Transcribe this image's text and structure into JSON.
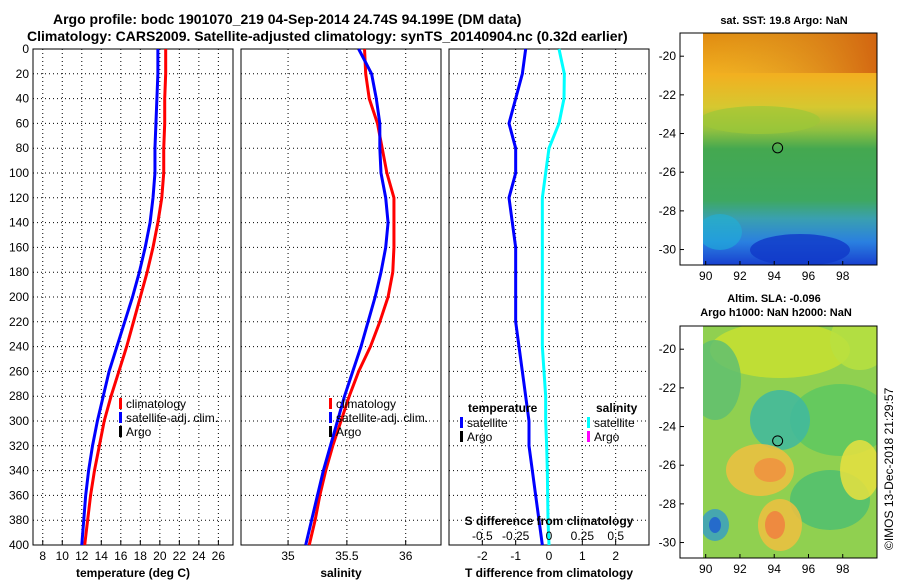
{
  "title": {
    "line1": "Argo profile: bodc 1901070_219 04-Sep-2014 24.74S 94.199E (DM data)",
    "line2": "Climatology: CARS2009. Satellite-adjusted climatology: synTS_20140904.nc (0.32d earlier)"
  },
  "colors": {
    "climatology": "#ff0000",
    "satellite": "#0000ff",
    "argo": "#000000",
    "salinity_satellite": "#00ffff",
    "salinity_argo": "#ff00ff"
  },
  "watermark": "©IMOS 13-Dec-2018 21:29:57",
  "chart_data": [
    {
      "id": "temperature",
      "type": "line",
      "xlabel": "temperature (deg C)",
      "xlim": [
        7,
        27.5
      ],
      "xticks": [
        8,
        10,
        12,
        14,
        16,
        18,
        20,
        22,
        24,
        26
      ],
      "xtick_labels": [
        "8",
        "10",
        "12",
        "14",
        "16",
        "18",
        "20",
        "22",
        "24",
        "26"
      ],
      "ylim": [
        0,
        400
      ],
      "yticks": [
        0,
        20,
        40,
        60,
        80,
        100,
        120,
        140,
        160,
        180,
        200,
        220,
        240,
        260,
        280,
        300,
        320,
        340,
        360,
        380,
        400
      ],
      "depth": [
        0,
        20,
        40,
        60,
        80,
        100,
        120,
        140,
        160,
        180,
        200,
        220,
        240,
        260,
        280,
        300,
        320,
        340,
        360,
        380,
        400
      ],
      "series": [
        {
          "name": "climatology",
          "color_key": "climatology",
          "values": [
            20.6,
            20.6,
            20.5,
            20.5,
            20.4,
            20.4,
            20.2,
            19.8,
            19.3,
            18.7,
            18.0,
            17.3,
            16.6,
            15.8,
            15.0,
            14.3,
            13.8,
            13.3,
            12.9,
            12.6,
            12.3
          ]
        },
        {
          "name": "satellite-adj. clim.",
          "color_key": "satellite",
          "values": [
            19.8,
            19.8,
            19.7,
            19.6,
            19.5,
            19.5,
            19.3,
            19.0,
            18.5,
            17.9,
            17.2,
            16.4,
            15.6,
            14.8,
            14.2,
            13.6,
            13.1,
            12.7,
            12.4,
            12.2,
            12.0
          ]
        }
      ],
      "legend": [
        "climatology",
        "satellite-adj. clim.",
        "Argo"
      ]
    },
    {
      "id": "salinity",
      "type": "line",
      "xlabel": "salinity",
      "xlim": [
        34.6,
        36.3
      ],
      "xticks": [
        35,
        35.5,
        36
      ],
      "xtick_labels": [
        "35",
        "35.5",
        "36"
      ],
      "ylim": [
        0,
        400
      ],
      "depth": [
        0,
        20,
        40,
        60,
        80,
        100,
        120,
        140,
        160,
        180,
        200,
        220,
        240,
        260,
        280,
        300,
        320,
        340,
        360,
        380,
        400
      ],
      "series": [
        {
          "name": "climatology",
          "color_key": "climatology",
          "values": [
            35.65,
            35.66,
            35.69,
            35.76,
            35.8,
            35.84,
            35.9,
            35.9,
            35.9,
            35.89,
            35.85,
            35.78,
            35.7,
            35.6,
            35.52,
            35.45,
            35.38,
            35.32,
            35.27,
            35.23,
            35.18
          ]
        },
        {
          "name": "satellite-adj. clim.",
          "color_key": "satellite",
          "values": [
            35.6,
            35.71,
            35.75,
            35.78,
            35.78,
            35.79,
            35.83,
            35.85,
            35.83,
            35.79,
            35.74,
            35.68,
            35.62,
            35.55,
            35.48,
            35.42,
            35.36,
            35.3,
            35.25,
            35.2,
            35.15
          ]
        }
      ],
      "legend": [
        "climatology",
        "satellite-adj. clim.",
        "Argo"
      ]
    },
    {
      "id": "difference",
      "type": "line",
      "xlabel": "T difference from climatology",
      "xlim": [
        -3.0,
        3.0
      ],
      "xticks": [
        -2,
        -1,
        0,
        1,
        2
      ],
      "xtick_labels": [
        "-2",
        "-1",
        "0",
        "1",
        "2"
      ],
      "secondary_xlabel": "S difference from climatology",
      "secondary_xticks": [
        -0.5,
        -0.25,
        0,
        0.25,
        0.5
      ],
      "secondary_xtick_labels": [
        "-0.5",
        "-0.25",
        "0",
        "0.25",
        "0.5"
      ],
      "secondary_scale": 4,
      "ylim": [
        0,
        400
      ],
      "depth": [
        0,
        20,
        40,
        60,
        80,
        100,
        120,
        140,
        160,
        180,
        200,
        220,
        240,
        260,
        280,
        300,
        320,
        340,
        360,
        380,
        400
      ],
      "series": [
        {
          "name": "temperature satellite",
          "color_key": "satellite",
          "values": [
            -0.7,
            -0.8,
            -1.0,
            -1.2,
            -1.0,
            -1.0,
            -1.2,
            -1.1,
            -1.0,
            -1.0,
            -1.0,
            -1.0,
            -0.9,
            -0.8,
            -0.7,
            -0.6,
            -0.6,
            -0.5,
            -0.4,
            -0.3,
            -0.2
          ]
        },
        {
          "name": "salinity satellite",
          "color_key": "salinity_satellite",
          "values": [
            0.3,
            0.46,
            0.45,
            0.3,
            0.0,
            -0.1,
            -0.2,
            -0.2,
            -0.2,
            -0.2,
            -0.2,
            -0.2,
            -0.2,
            -0.15,
            -0.1,
            -0.1,
            -0.07,
            -0.05,
            -0.04,
            -0.03,
            0.0
          ]
        }
      ],
      "legend_groups": [
        {
          "heading": "temperature",
          "items": [
            "satellite",
            "Argo"
          ]
        },
        {
          "heading": "salinity",
          "items": [
            "satellite",
            "Argo"
          ]
        }
      ]
    },
    {
      "id": "sst_map",
      "type": "heatmap",
      "title": "sat. SST: 19.8 Argo: NaN",
      "xticks": [
        90,
        92,
        94,
        96,
        98
      ],
      "xtick_labels": [
        "90",
        "92",
        "94",
        "96",
        "98"
      ],
      "yticks": [
        -20,
        -22,
        -24,
        -26,
        -28,
        -30
      ],
      "ytick_labels": [
        "-20",
        "-22",
        "-24",
        "-26",
        "-28",
        "-30"
      ],
      "xlim": [
        88.5,
        100
      ],
      "ylim": [
        -30.8,
        -18.8
      ],
      "float_position": [
        94.199,
        -24.74
      ]
    },
    {
      "id": "sla_map",
      "type": "heatmap",
      "title": "Altim. SLA: -0.096",
      "subtitle": "Argo h1000: NaN h2000: NaN",
      "xticks": [
        90,
        92,
        94,
        96,
        98
      ],
      "xtick_labels": [
        "90",
        "92",
        "94",
        "96",
        "98"
      ],
      "yticks": [
        -20,
        -22,
        -24,
        -26,
        -28,
        -30
      ],
      "ytick_labels": [
        "-20",
        "-22",
        "-24",
        "-26",
        "-28",
        "-30"
      ],
      "xlim": [
        88.5,
        100
      ],
      "ylim": [
        -30.8,
        -18.8
      ],
      "float_position": [
        94.199,
        -24.74
      ]
    }
  ]
}
